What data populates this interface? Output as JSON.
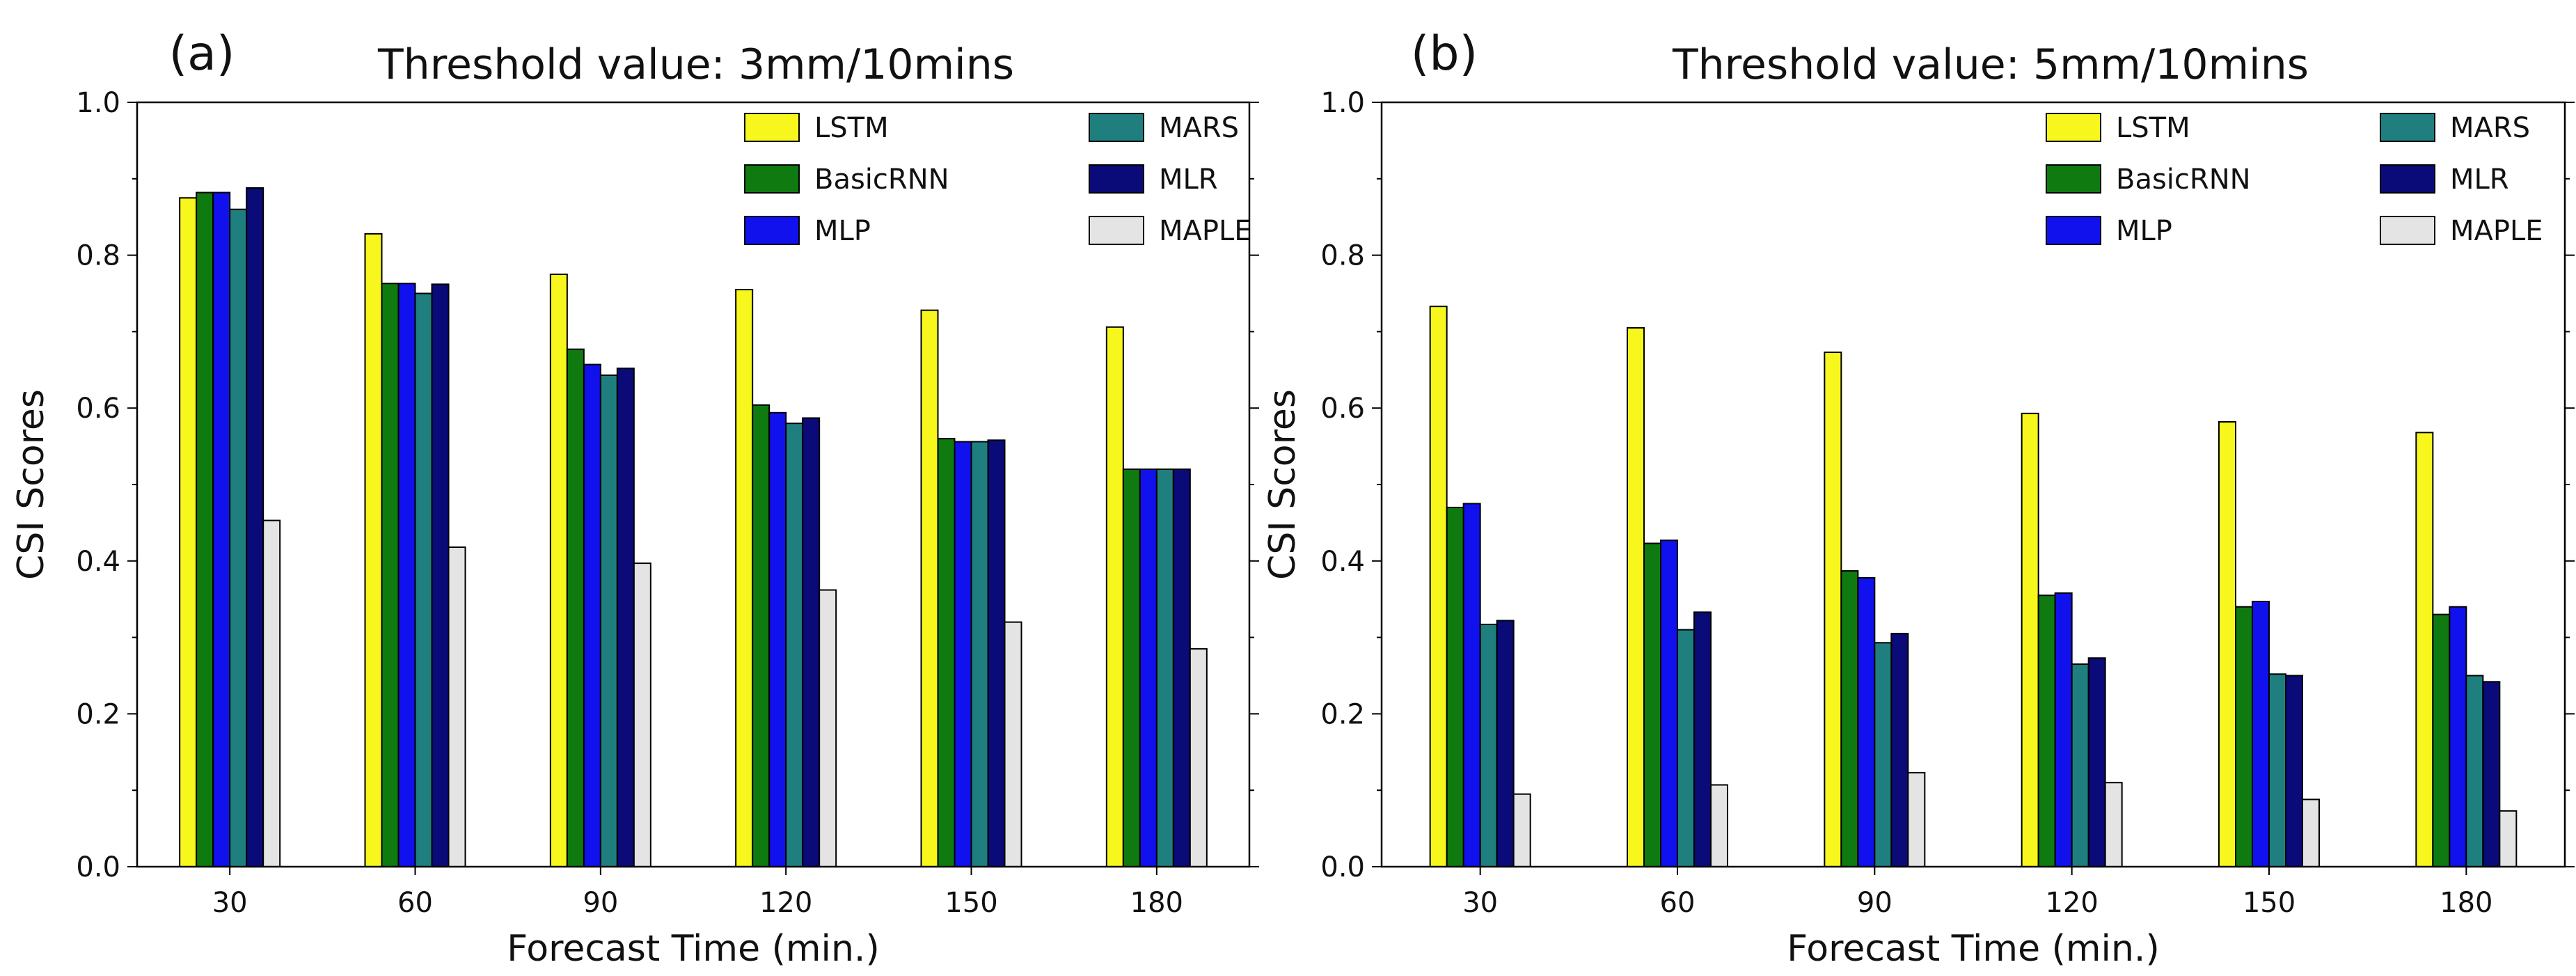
{
  "chart_data": [
    {
      "type": "bar",
      "panel_label": "(a)",
      "title": "Threshold value: 3mm/10mins",
      "xlabel": "Forecast Time (min.)",
      "ylabel": "CSI Scores",
      "ylim": [
        0,
        1.0
      ],
      "yticks": [
        "0.0",
        "0.2",
        "0.4",
        "0.6",
        "0.8",
        "1.0"
      ],
      "categories": [
        "30",
        "60",
        "90",
        "120",
        "150",
        "180"
      ],
      "legend_position": "top-right",
      "series": [
        {
          "name": "LSTM",
          "color": "#f7f71e",
          "values": [
            0.875,
            0.828,
            0.775,
            0.755,
            0.728,
            0.706
          ]
        },
        {
          "name": "BasicRNN",
          "color": "#0f7a0f",
          "values": [
            0.882,
            0.763,
            0.677,
            0.604,
            0.56,
            0.52
          ]
        },
        {
          "name": "MLP",
          "color": "#1111ee",
          "values": [
            0.882,
            0.763,
            0.657,
            0.594,
            0.556,
            0.52
          ]
        },
        {
          "name": "MARS",
          "color": "#1f7f7f",
          "values": [
            0.86,
            0.75,
            0.643,
            0.58,
            0.556,
            0.52
          ]
        },
        {
          "name": "MLR",
          "color": "#0a0a78",
          "values": [
            0.888,
            0.762,
            0.652,
            0.587,
            0.558,
            0.52
          ]
        },
        {
          "name": "MAPLE",
          "color": "#e4e4e4",
          "values": [
            0.453,
            0.418,
            0.397,
            0.362,
            0.32,
            0.285
          ]
        }
      ]
    },
    {
      "type": "bar",
      "panel_label": "(b)",
      "title": "Threshold value: 5mm/10mins",
      "xlabel": "Forecast Time (min.)",
      "ylabel": "CSI Scores",
      "ylim": [
        0,
        1.0
      ],
      "yticks": [
        "0.0",
        "0.2",
        "0.4",
        "0.6",
        "0.8",
        "1.0"
      ],
      "categories": [
        "30",
        "60",
        "90",
        "120",
        "150",
        "180"
      ],
      "legend_position": "top-right",
      "series": [
        {
          "name": "LSTM",
          "color": "#f7f71e",
          "values": [
            0.733,
            0.705,
            0.673,
            0.593,
            0.582,
            0.568
          ]
        },
        {
          "name": "BasicRNN",
          "color": "#0f7a0f",
          "values": [
            0.47,
            0.423,
            0.387,
            0.355,
            0.34,
            0.33
          ]
        },
        {
          "name": "MLP",
          "color": "#1111ee",
          "values": [
            0.475,
            0.427,
            0.378,
            0.358,
            0.347,
            0.34
          ]
        },
        {
          "name": "MARS",
          "color": "#1f7f7f",
          "values": [
            0.317,
            0.31,
            0.293,
            0.265,
            0.252,
            0.25
          ]
        },
        {
          "name": "MLR",
          "color": "#0a0a78",
          "values": [
            0.322,
            0.333,
            0.305,
            0.273,
            0.25,
            0.242
          ]
        },
        {
          "name": "MAPLE",
          "color": "#e4e4e4",
          "values": [
            0.095,
            0.107,
            0.123,
            0.11,
            0.088,
            0.073
          ]
        }
      ]
    }
  ]
}
